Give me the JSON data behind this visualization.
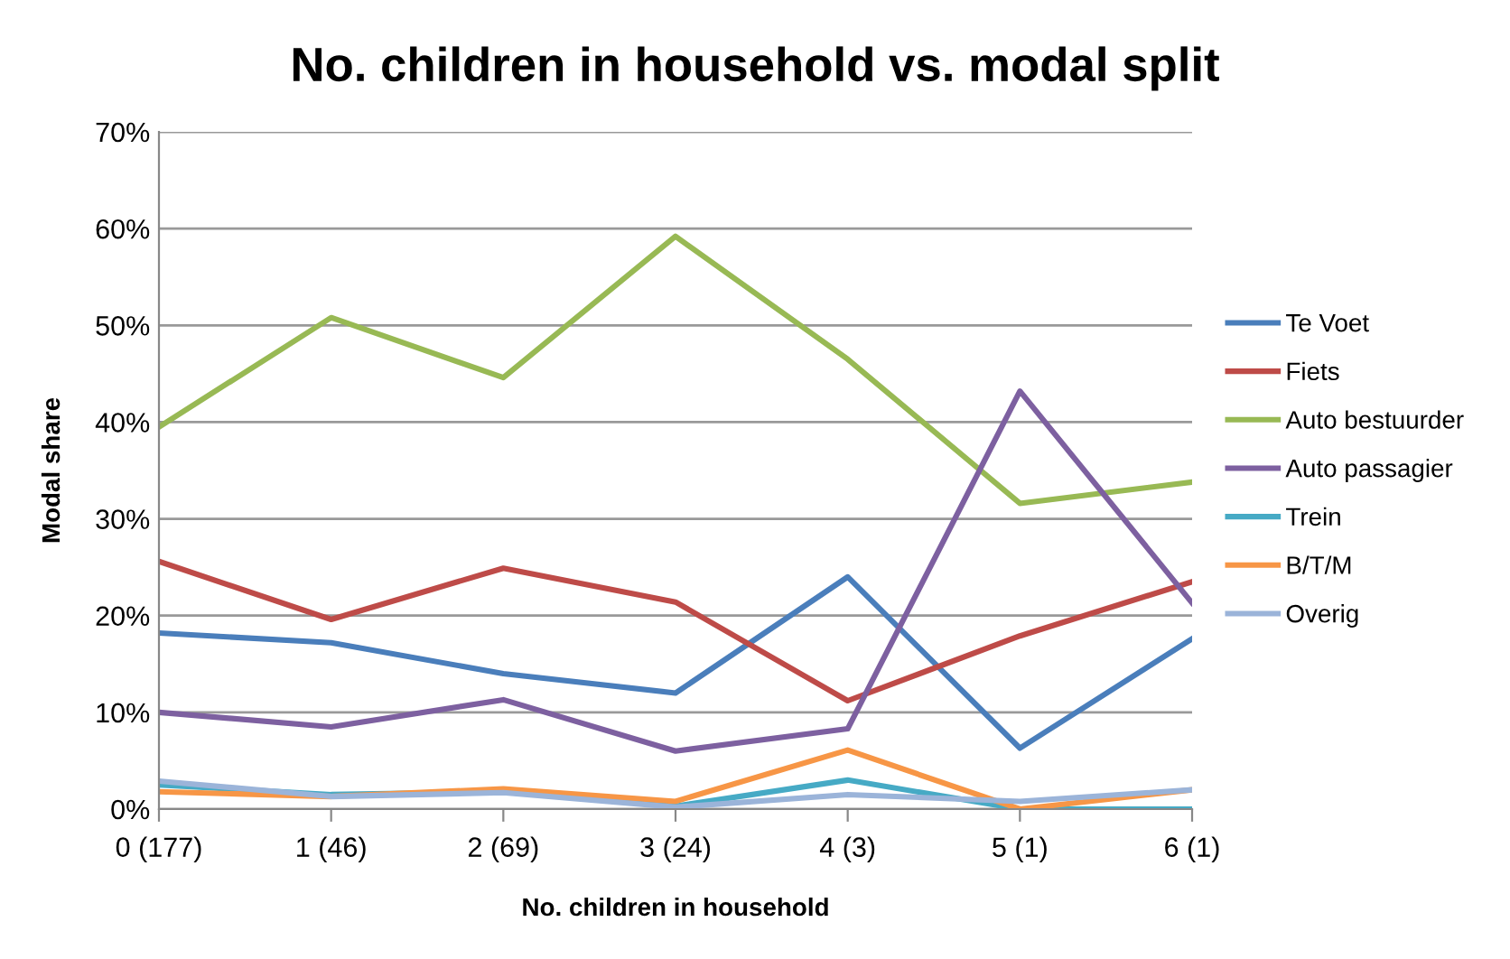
{
  "chart_data": {
    "type": "line",
    "title": "No. children in household vs. modal split",
    "xlabel": "No. children in household",
    "ylabel": "Modal share",
    "categories": [
      "0 (177)",
      "1 (46)",
      "2 (69)",
      "3 (24)",
      "4 (3)",
      "5 (1)",
      "6 (1)"
    ],
    "series": [
      {
        "name": "Te Voet",
        "color": "#4a7ebb",
        "values": [
          18.2,
          17.2,
          14.0,
          12.0,
          24.0,
          6.3,
          17.6
        ]
      },
      {
        "name": "Fiets",
        "color": "#be4b48",
        "values": [
          25.6,
          19.6,
          24.9,
          21.4,
          11.2,
          17.9,
          23.5
        ]
      },
      {
        "name": "Auto bestuurder",
        "color": "#98b954",
        "values": [
          39.5,
          50.8,
          44.6,
          59.2,
          46.5,
          31.6,
          33.8
        ]
      },
      {
        "name": "Auto passagier",
        "color": "#7d60a0",
        "values": [
          10.0,
          8.5,
          11.3,
          6.0,
          8.3,
          43.2,
          21.3
        ]
      },
      {
        "name": "Trein",
        "color": "#46aac5",
        "values": [
          2.5,
          1.5,
          1.8,
          0.3,
          3.0,
          0,
          0
        ]
      },
      {
        "name": "B/T/M",
        "color": "#f79646",
        "values": [
          1.8,
          1.3,
          2.1,
          0.8,
          6.1,
          0,
          2.0
        ]
      },
      {
        "name": "Overig",
        "color": "#9bb4d9",
        "values": [
          2.9,
          1.3,
          1.7,
          0.2,
          1.5,
          0.8,
          2.0
        ]
      }
    ],
    "ylim": [
      0,
      70
    ],
    "yticks": [
      {
        "value": 0,
        "label": "0%"
      },
      {
        "value": 10,
        "label": "10%"
      },
      {
        "value": 20,
        "label": "20%"
      },
      {
        "value": 30,
        "label": "30%"
      },
      {
        "value": 40,
        "label": "40%"
      },
      {
        "value": 50,
        "label": "50%"
      },
      {
        "value": 60,
        "label": "60%"
      },
      {
        "value": 70,
        "label": "70%"
      }
    ],
    "grid": "y",
    "legend": "right",
    "marker": "none",
    "line_style": "solid"
  }
}
